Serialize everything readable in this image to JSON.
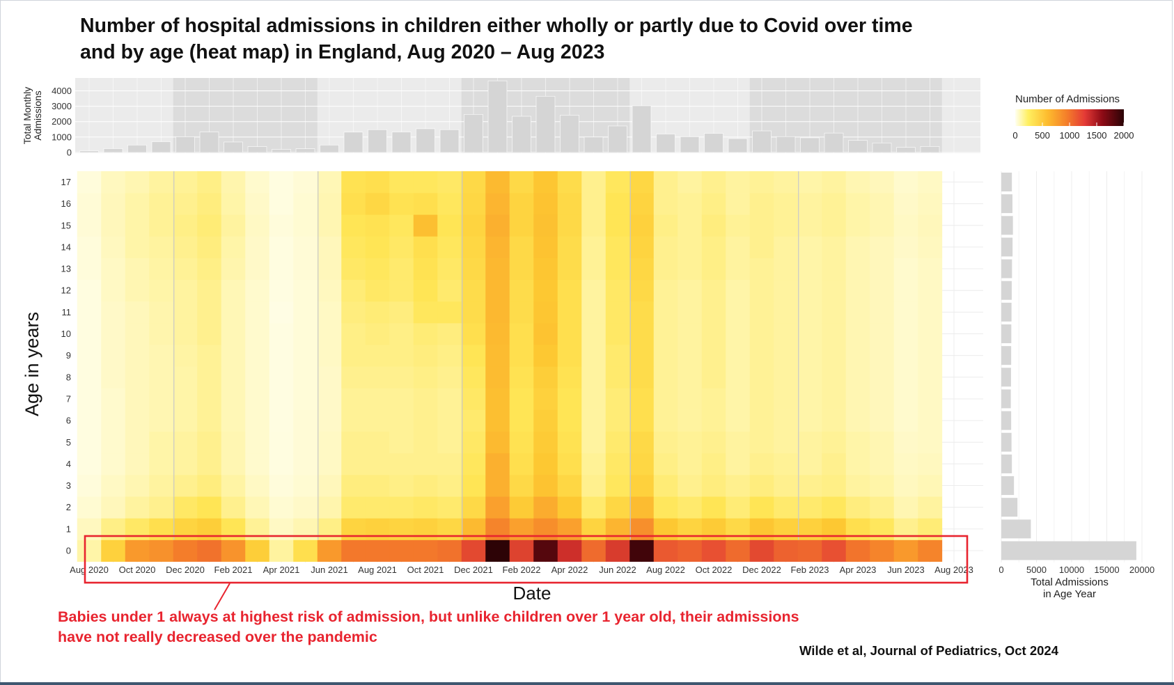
{
  "title_line1": "Number of hospital admissions in children either wholly or partly due to Covid over time",
  "title_line2": "and by age (heat map) in England, Aug 2020 – Aug 2023",
  "annotation_line1": "Babies under 1 always at highest risk of admission, but unlike children over 1 year old, their admissions",
  "annotation_line2": "have not really decreased over the pandemic",
  "citation": "Wilde et al, Journal of Pediatrics, Oct 2024",
  "colors": {
    "highlight": "#e8242f",
    "bar": "#d5d5d5",
    "panel": "#ebebeb",
    "shade": "#dcdcdc"
  },
  "chart_data": [
    {
      "type": "bar",
      "name": "monthly-totals",
      "ylabel": "Total Monthly Admissions",
      "yticks": [
        0,
        1000,
        2000,
        3000,
        4000
      ],
      "ylim": [
        0,
        4700
      ],
      "categories": [
        "Aug 2020",
        "Sep 2020",
        "Oct 2020",
        "Nov 2020",
        "Dec 2020",
        "Jan 2021",
        "Feb 2021",
        "Mar 2021",
        "Apr 2021",
        "May 2021",
        "Jun 2021",
        "Jul 2021",
        "Aug 2021",
        "Sep 2021",
        "Oct 2021",
        "Nov 2021",
        "Dec 2021",
        "Jan 2022",
        "Feb 2022",
        "Mar 2022",
        "Apr 2022",
        "May 2022",
        "Jun 2022",
        "Jul 2022",
        "Aug 2022",
        "Sep 2022",
        "Oct 2022",
        "Nov 2022",
        "Dec 2022",
        "Jan 2023",
        "Feb 2023",
        "Mar 2023",
        "Apr 2023",
        "May 2023",
        "Jun 2023",
        "Jul 2023",
        "Aug 2023"
      ],
      "values": [
        100,
        250,
        480,
        700,
        1020,
        1330,
        680,
        380,
        200,
        240,
        480,
        1320,
        1480,
        1330,
        1540,
        1480,
        2470,
        4650,
        2350,
        3650,
        2420,
        1000,
        1720,
        3030,
        1200,
        1020,
        1240,
        900,
        1400,
        1030,
        950,
        1260,
        780,
        620,
        330,
        390,
        0
      ],
      "shaded_periods": [
        [
          "Dec 2020",
          "May 2021"
        ],
        [
          "Dec 2021",
          "Jun 2022"
        ],
        [
          "Dec 2022",
          "Jul 2023"
        ]
      ]
    },
    {
      "type": "heatmap",
      "name": "admissions-by-age-and-month",
      "xlabel": "Date",
      "ylabel": "Age in years",
      "x_tick_labels": [
        "Aug 2020",
        "Oct 2020",
        "Dec 2020",
        "Feb 2021",
        "Apr 2021",
        "Jun 2021",
        "Aug 2021",
        "Oct 2021",
        "Dec 2021",
        "Feb 2022",
        "Apr 2022",
        "Jun 2022",
        "Aug 2022",
        "Oct 2022",
        "Dec 2022",
        "Feb 2023",
        "Apr 2023",
        "Jun 2023",
        "Aug 2023"
      ],
      "ages": [
        0,
        1,
        2,
        3,
        4,
        5,
        6,
        7,
        8,
        9,
        10,
        11,
        12,
        13,
        14,
        15,
        16,
        17
      ],
      "color_range": [
        0,
        2000
      ],
      "color_label": "Number of Admissions",
      "color_ticks": [
        0,
        500,
        1000,
        1500,
        2000
      ],
      "rows": {
        "0": [
          80,
          250,
          500,
          560,
          700,
          760,
          540,
          260,
          90,
          200,
          500,
          730,
          730,
          730,
          730,
          760,
          1000,
          2000,
          1050,
          1800,
          1200,
          800,
          1100,
          1900,
          900,
          850,
          950,
          800,
          1000,
          850,
          820,
          950,
          750,
          650,
          500,
          650
        ],
        "1": [
          55,
          120,
          160,
          200,
          240,
          260,
          180,
          100,
          50,
          70,
          120,
          240,
          250,
          240,
          250,
          230,
          340,
          650,
          450,
          580,
          450,
          240,
          360,
          570,
          280,
          240,
          270,
          220,
          290,
          250,
          250,
          280,
          200,
          170,
          110,
          140
        ],
        "2": [
          35,
          60,
          90,
          110,
          160,
          180,
          110,
          65,
          35,
          45,
          75,
          150,
          150,
          150,
          160,
          150,
          220,
          450,
          270,
          400,
          280,
          150,
          230,
          330,
          170,
          150,
          180,
          140,
          180,
          150,
          150,
          170,
          130,
          110,
          70,
          90
        ],
        "3": [
          25,
          50,
          70,
          90,
          110,
          130,
          85,
          50,
          25,
          35,
          60,
          130,
          130,
          120,
          130,
          120,
          180,
          380,
          220,
          300,
          230,
          110,
          170,
          250,
          140,
          110,
          130,
          110,
          130,
          110,
          110,
          120,
          90,
          80,
          55,
          65
        ],
        "4": [
          20,
          40,
          60,
          80,
          90,
          110,
          70,
          40,
          20,
          30,
          50,
          110,
          110,
          110,
          110,
          110,
          170,
          380,
          200,
          280,
          200,
          100,
          160,
          230,
          120,
          100,
          120,
          90,
          110,
          100,
          90,
          110,
          80,
          70,
          50,
          55
        ],
        "5": [
          20,
          40,
          60,
          80,
          90,
          110,
          70,
          40,
          20,
          30,
          50,
          110,
          110,
          100,
          110,
          100,
          160,
          340,
          190,
          270,
          190,
          90,
          150,
          220,
          110,
          100,
          110,
          90,
          100,
          90,
          90,
          100,
          80,
          70,
          45,
          50
        ],
        "6": [
          20,
          40,
          60,
          70,
          80,
          100,
          65,
          40,
          18,
          30,
          45,
          100,
          100,
          100,
          110,
          100,
          150,
          320,
          180,
          260,
          180,
          90,
          140,
          200,
          100,
          90,
          100,
          80,
          100,
          90,
          80,
          90,
          70,
          60,
          40,
          50
        ],
        "7": [
          20,
          40,
          60,
          70,
          80,
          100,
          65,
          40,
          18,
          28,
          45,
          100,
          100,
          100,
          110,
          100,
          160,
          320,
          180,
          250,
          180,
          90,
          140,
          200,
          100,
          90,
          100,
          80,
          100,
          90,
          80,
          90,
          70,
          60,
          40,
          50
        ],
        "8": [
          20,
          45,
          60,
          70,
          80,
          100,
          65,
          40,
          18,
          28,
          45,
          110,
          110,
          110,
          120,
          110,
          170,
          330,
          190,
          260,
          190,
          90,
          150,
          210,
          100,
          90,
          110,
          80,
          100,
          90,
          80,
          90,
          70,
          60,
          40,
          50
        ],
        "9": [
          20,
          45,
          60,
          70,
          85,
          100,
          65,
          40,
          18,
          28,
          50,
          120,
          120,
          120,
          130,
          120,
          180,
          330,
          200,
          280,
          200,
          90,
          150,
          210,
          100,
          90,
          110,
          80,
          100,
          90,
          80,
          90,
          70,
          60,
          40,
          50
        ],
        "10": [
          20,
          45,
          60,
          75,
          90,
          110,
          65,
          40,
          18,
          28,
          50,
          120,
          130,
          120,
          140,
          130,
          200,
          340,
          200,
          300,
          200,
          90,
          160,
          210,
          100,
          90,
          110,
          80,
          100,
          90,
          80,
          90,
          70,
          60,
          40,
          50
        ],
        "11": [
          20,
          45,
          60,
          75,
          90,
          110,
          65,
          40,
          15,
          28,
          50,
          130,
          140,
          130,
          170,
          170,
          210,
          350,
          210,
          290,
          200,
          90,
          160,
          210,
          100,
          90,
          110,
          80,
          100,
          90,
          80,
          90,
          70,
          60,
          40,
          50
        ],
        "12": [
          20,
          50,
          70,
          80,
          90,
          110,
          65,
          40,
          18,
          28,
          55,
          140,
          160,
          150,
          180,
          150,
          210,
          350,
          210,
          280,
          200,
          90,
          160,
          220,
          100,
          90,
          110,
          80,
          100,
          90,
          80,
          90,
          70,
          60,
          40,
          50
        ],
        "13": [
          25,
          50,
          70,
          85,
          100,
          120,
          75,
          45,
          20,
          30,
          60,
          160,
          170,
          150,
          190,
          160,
          220,
          350,
          220,
          290,
          210,
          100,
          170,
          230,
          110,
          100,
          120,
          90,
          100,
          90,
          80,
          90,
          70,
          60,
          40,
          50
        ],
        "14": [
          25,
          55,
          80,
          90,
          110,
          130,
          80,
          45,
          20,
          30,
          60,
          170,
          180,
          160,
          200,
          170,
          230,
          360,
          220,
          300,
          210,
          100,
          170,
          240,
          110,
          100,
          120,
          90,
          110,
          90,
          80,
          90,
          70,
          60,
          45,
          55
        ],
        "15": [
          30,
          60,
          80,
          100,
          120,
          140,
          90,
          50,
          25,
          35,
          70,
          180,
          190,
          170,
          320,
          180,
          240,
          380,
          240,
          310,
          220,
          110,
          180,
          250,
          120,
          100,
          130,
          100,
          110,
          100,
          90,
          100,
          80,
          70,
          50,
          60
        ],
        "16": [
          30,
          60,
          80,
          100,
          110,
          130,
          80,
          45,
          20,
          35,
          70,
          200,
          230,
          190,
          200,
          170,
          230,
          360,
          240,
          300,
          220,
          110,
          180,
          240,
          110,
          100,
          120,
          90,
          110,
          100,
          90,
          100,
          80,
          70,
          45,
          55
        ],
        "17": [
          25,
          55,
          70,
          90,
          100,
          120,
          75,
          40,
          20,
          30,
          65,
          190,
          200,
          170,
          170,
          160,
          220,
          340,
          220,
          290,
          210,
          110,
          170,
          230,
          110,
          90,
          110,
          90,
          100,
          90,
          80,
          90,
          70,
          60,
          40,
          50
        ]
      }
    },
    {
      "type": "bar",
      "orientation": "horizontal",
      "name": "age-year-totals",
      "xlabel": "Total Admissions in Age Year",
      "xlabel_line1": "Total Admissions",
      "xlabel_line2": "in Age Year",
      "xticks": [
        0,
        5000,
        10000,
        15000,
        20000
      ],
      "xlim": [
        0,
        20000
      ],
      "categories": [
        0,
        1,
        2,
        3,
        4,
        5,
        6,
        7,
        8,
        9,
        10,
        11,
        12,
        13,
        14,
        15,
        16,
        17
      ],
      "values": [
        19200,
        4200,
        2300,
        1800,
        1500,
        1450,
        1400,
        1350,
        1380,
        1400,
        1420,
        1450,
        1480,
        1520,
        1600,
        1650,
        1580,
        1500
      ]
    }
  ]
}
